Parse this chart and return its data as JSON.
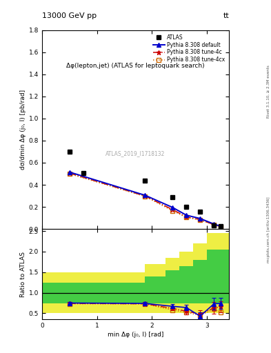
{
  "title_top": "13000 GeV pp",
  "title_top_right": "tt",
  "annotation": "ATLAS_2019_I1718132",
  "inner_title": "Δφ(lepton,jet) (ATLAS for leptoquark search)",
  "right_label_top": "Rivet 3.1.10, ≥ 2.3M events",
  "right_label_bottom": "mcplots.cern.ch [arXiv:1306.3436]",
  "ylabel_main": "dσ/dmin Δφ (j₀, l) [pb/rad]",
  "ylabel_ratio": "Ratio to ATLAS",
  "xlabel": "min Δφ (j₀, l) [rad]",
  "ylim_main": [
    0,
    1.8
  ],
  "ylim_ratio": [
    0.35,
    2.55
  ],
  "yticks_main": [
    0.0,
    0.2,
    0.4,
    0.6,
    0.8,
    1.0,
    1.2,
    1.4,
    1.6,
    1.8
  ],
  "yticks_ratio": [
    0.5,
    1.0,
    1.5,
    2.0,
    2.5
  ],
  "xlim": [
    0,
    3.4
  ],
  "xticks": [
    0,
    1,
    2,
    3
  ],
  "atlas_x": [
    0.5,
    0.75,
    1.875,
    2.375,
    2.625,
    2.875,
    3.125,
    3.25
  ],
  "atlas_y": [
    0.7,
    0.505,
    0.44,
    0.29,
    0.2,
    0.155,
    0.035,
    0.028
  ],
  "pythia_x": [
    0.5,
    1.875,
    2.375,
    2.625,
    2.875,
    3.125,
    3.25
  ],
  "default_y": [
    0.515,
    0.305,
    0.195,
    0.125,
    0.095,
    0.045,
    0.025
  ],
  "tune4c_y": [
    0.505,
    0.298,
    0.175,
    0.11,
    0.085,
    0.04,
    0.022
  ],
  "tune4cx_y": [
    0.5,
    0.295,
    0.165,
    0.105,
    0.082,
    0.038,
    0.02
  ],
  "ratio_x": [
    0.5,
    1.875,
    2.375,
    2.625,
    2.875,
    3.125,
    3.25
  ],
  "ratio_default_y": [
    0.75,
    0.74,
    0.67,
    0.64,
    0.43,
    0.73,
    0.74
  ],
  "ratio_tune4c_y": [
    0.74,
    0.73,
    0.62,
    0.55,
    0.48,
    0.63,
    0.66
  ],
  "ratio_tune4cx_y": [
    0.73,
    0.73,
    0.58,
    0.52,
    0.45,
    0.6,
    0.52
  ],
  "ratio_default_err": [
    0.03,
    0.04,
    0.05,
    0.07,
    0.1,
    0.14,
    0.13
  ],
  "ratio_tune4c_err": [
    0.03,
    0.04,
    0.05,
    0.07,
    0.1,
    0.14,
    0.13
  ],
  "band_x_edges": [
    0.0,
    0.625,
    1.25,
    1.875,
    2.25,
    2.5,
    2.75,
    3.0,
    3.5
  ],
  "band_green_lo": [
    0.75,
    0.75,
    0.75,
    0.75,
    0.75,
    0.75,
    0.75,
    0.75,
    0.75
  ],
  "band_green_hi": [
    1.25,
    1.25,
    1.25,
    1.4,
    1.55,
    1.65,
    1.8,
    2.05,
    2.05
  ],
  "band_yellow_lo": [
    0.5,
    0.5,
    0.5,
    0.5,
    0.5,
    0.5,
    0.5,
    0.5,
    0.5
  ],
  "band_yellow_hi": [
    1.5,
    1.5,
    1.5,
    1.7,
    1.85,
    2.0,
    2.2,
    2.45,
    2.45
  ],
  "color_atlas": "#000000",
  "color_default": "#0000cc",
  "color_tune4c": "#cc0000",
  "color_tune4cx": "#cc6600",
  "color_green": "#44cc44",
  "color_yellow": "#eeee44",
  "bg_color": "#ffffff"
}
